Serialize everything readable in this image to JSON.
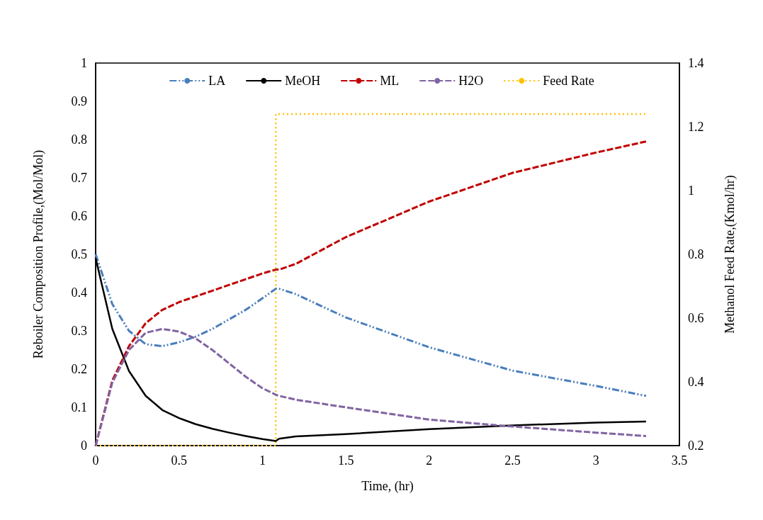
{
  "chart_data": {
    "type": "line",
    "xlabel": "Time, (hr)",
    "ylabel": "Reboiler Composition Profile,(Mol/Mol)",
    "y2label": "Methanol Feed Rate,(Kmol/hr)",
    "x": [
      0,
      0.1,
      0.2,
      0.3,
      0.4,
      0.5,
      0.6,
      0.7,
      0.8,
      0.9,
      1.0,
      1.08,
      1.1,
      1.2,
      1.5,
      2,
      2.5,
      3,
      3.3
    ],
    "series": [
      {
        "name": "LA",
        "color": "#4a7ebb",
        "line_style": "dashdot",
        "values": [
          0.5,
          0.37,
          0.3,
          0.265,
          0.26,
          0.27,
          0.285,
          0.305,
          0.33,
          0.355,
          0.385,
          0.41,
          0.41,
          0.396,
          0.335,
          0.257,
          0.196,
          0.156,
          0.13
        ]
      },
      {
        "name": "MeOH",
        "color": "#000000",
        "line_style": "solid",
        "values": [
          0.49,
          0.305,
          0.195,
          0.13,
          0.093,
          0.072,
          0.056,
          0.044,
          0.034,
          0.025,
          0.017,
          0.012,
          0.018,
          0.024,
          0.03,
          0.043,
          0.053,
          0.06,
          0.063
        ]
      },
      {
        "name": "ML",
        "color": "#c00000",
        "line_style": "dashed",
        "values": [
          0,
          0.17,
          0.26,
          0.32,
          0.355,
          0.375,
          0.39,
          0.405,
          0.42,
          0.435,
          0.45,
          0.46,
          0.46,
          0.475,
          0.545,
          0.638,
          0.713,
          0.766,
          0.795
        ]
      },
      {
        "name": "H2O",
        "color": "#8064a2",
        "line_style": "dashed",
        "values": [
          0,
          0.165,
          0.25,
          0.295,
          0.305,
          0.298,
          0.28,
          0.25,
          0.215,
          0.18,
          0.15,
          0.133,
          0.13,
          0.12,
          0.1,
          0.068,
          0.05,
          0.034,
          0.025
        ]
      },
      {
        "name": "Feed Rate",
        "color": "#ffc000",
        "line_style": "dotted",
        "axis": "y2",
        "x": [
          0,
          1.08,
          1.08,
          3.3
        ],
        "values": [
          0.2,
          0.2,
          1.24,
          1.24
        ]
      }
    ],
    "xlim": [
      0,
      3.5
    ],
    "xticks": [
      0,
      0.5,
      1,
      1.5,
      2,
      2.5,
      3,
      3.5
    ],
    "ylim": [
      0,
      1
    ],
    "yticks": [
      0,
      0.1,
      0.2,
      0.3,
      0.4,
      0.5,
      0.6,
      0.7,
      0.8,
      0.9,
      1
    ],
    "y2lim": [
      0.2,
      1.4
    ],
    "y2ticks": [
      0.2,
      0.4,
      0.6,
      0.8,
      1,
      1.2,
      1.4
    ],
    "legend": "top",
    "grid": false,
    "marker": "none"
  }
}
